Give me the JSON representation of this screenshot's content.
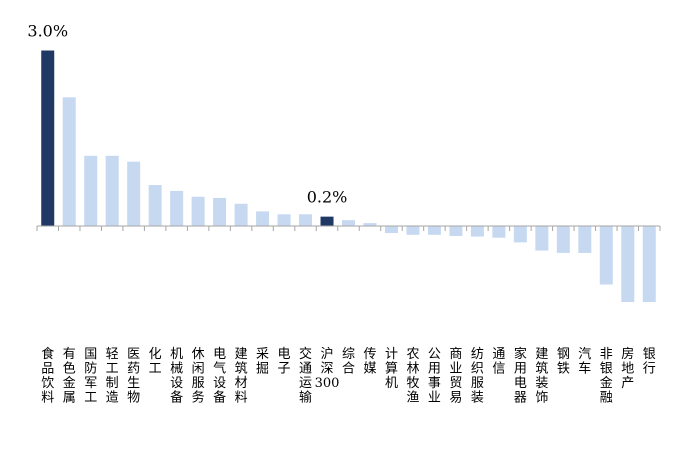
{
  "chart_data": {
    "type": "bar",
    "title": "",
    "xlabel": "",
    "ylabel": "",
    "ylim": [
      -1.8,
      3.5
    ],
    "grid": false,
    "legend": "none",
    "categories": [
      "食品饮料",
      "有色金属",
      "国防军工",
      "轻工制造",
      "医药生物",
      "化工",
      "机械设备",
      "休闲服务",
      "电气设备",
      "建筑材料",
      "采掘",
      "电子",
      "交通运输",
      "沪深300",
      "综合",
      "传媒",
      "计算机",
      "农林牧渔",
      "公用事业",
      "商业贸易",
      "纺织服装",
      "通信",
      "家用电器",
      "建筑装饰",
      "钢铁",
      "汽车",
      "非银金融",
      "房地产",
      "银行"
    ],
    "values": [
      3.0,
      2.2,
      1.2,
      1.2,
      1.1,
      0.7,
      0.6,
      0.5,
      0.48,
      0.38,
      0.25,
      0.2,
      0.2,
      0.16,
      0.1,
      0.05,
      -0.12,
      -0.15,
      -0.15,
      -0.17,
      -0.18,
      -0.2,
      -0.28,
      -0.42,
      -0.46,
      -0.46,
      -1.0,
      -1.3,
      -1.3
    ],
    "highlight_categories": [
      "食品饮料",
      "沪深300"
    ],
    "annotations": [
      {
        "category": "食品饮料",
        "text": "3.0%"
      },
      {
        "category": "沪深300",
        "text": "0.2%"
      }
    ],
    "colors": {
      "bar": "#c6d9f1",
      "highlight": "#1f3864",
      "axis": "#a6a6a6",
      "text": "#000000"
    }
  }
}
